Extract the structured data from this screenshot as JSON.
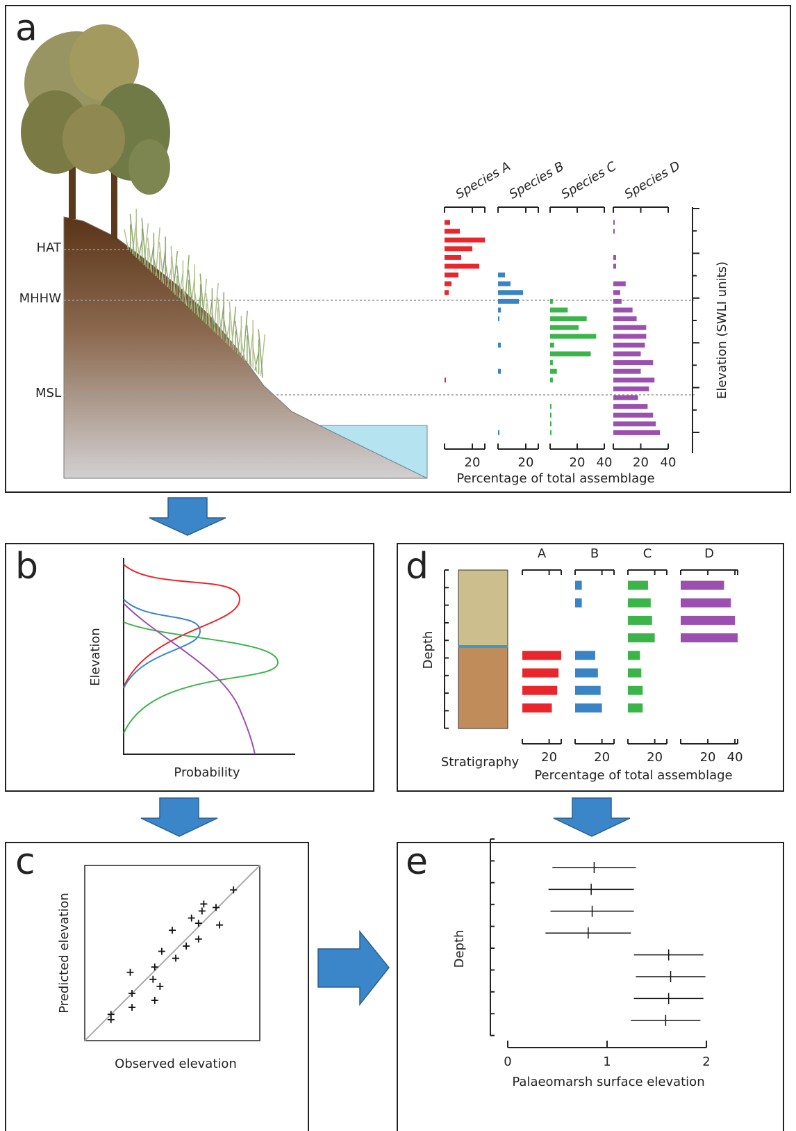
{
  "panel_a": {
    "label": "a",
    "tide_levels": [
      "HAT",
      "MHHW",
      "MSL"
    ],
    "species": [
      {
        "name": "Species A",
        "color": "#e8262b",
        "xlim": [
          0,
          29
        ],
        "xticks": [
          20
        ],
        "values": [
          4,
          11,
          29,
          20,
          12,
          25,
          10,
          5,
          3,
          null,
          null,
          null,
          null,
          null,
          null,
          null,
          null,
          null,
          1,
          null,
          null,
          null,
          null,
          null,
          null
        ]
      },
      {
        "name": "Species B",
        "color": "#3a84c6",
        "xlim": [
          0,
          29
        ],
        "xticks": [
          20
        ],
        "values": [
          null,
          null,
          null,
          null,
          null,
          null,
          5,
          9,
          18,
          15,
          2,
          1,
          null,
          null,
          2,
          null,
          null,
          2,
          null,
          null,
          null,
          null,
          null,
          null,
          1
        ]
      },
      {
        "name": "Species C",
        "color": "#3bb54a",
        "xlim": [
          0,
          40
        ],
        "xticks": [
          20,
          40
        ],
        "values": [
          null,
          null,
          null,
          null,
          null,
          null,
          null,
          null,
          null,
          2,
          13,
          27,
          21,
          34,
          3,
          30,
          2,
          5,
          2,
          null,
          null,
          1,
          1,
          1,
          1
        ]
      },
      {
        "name": "Species D",
        "color": "#9b4fae",
        "xlim": [
          0,
          40
        ],
        "xticks": [
          20,
          40
        ],
        "values": [
          1,
          1,
          null,
          null,
          2,
          2,
          null,
          9,
          5,
          6,
          14,
          17,
          24,
          24,
          23,
          20,
          29,
          20,
          30,
          26,
          18,
          25,
          29,
          31,
          34
        ]
      }
    ],
    "xlabel": "Percentage of total assemblage",
    "ylabel": "Elevation (SWLI units)"
  },
  "panel_b": {
    "label": "b",
    "ylabel": "Elevation",
    "xlabel": "Probability"
  },
  "panel_c": {
    "label": "c",
    "type": "scatter",
    "xlabel": "Observed elevation",
    "ylabel": "Predicted elevation",
    "xlim": [
      0,
      10
    ],
    "ylim": [
      0,
      10
    ],
    "x": [
      1.5,
      1.5,
      2.7,
      2.7,
      2.6,
      4.0,
      3.9,
      4.0,
      4.3,
      4.4,
      5.0,
      5.2,
      5.8,
      6.1,
      6.5,
      6.5,
      6.7,
      6.8,
      7.5,
      7.7,
      8.5
    ],
    "y": [
      1.5,
      1.2,
      2.7,
      1.9,
      3.9,
      4.2,
      3.5,
      2.3,
      3.1,
      5.1,
      6.3,
      4.7,
      5.4,
      7.0,
      6.7,
      5.8,
      7.4,
      7.8,
      7.6,
      6.6,
      8.6
    ]
  },
  "panel_d": {
    "label": "d",
    "column_label": "Stratigraphy",
    "ylabel": "Depth",
    "xlabel": "Percentage of total assemblage",
    "series": [
      {
        "name": "A",
        "color": "#e8262b",
        "xlim": [
          0,
          29
        ],
        "xticks": [
          20
        ],
        "values": [
          null,
          null,
          null,
          null,
          29,
          27,
          26,
          22
        ]
      },
      {
        "name": "B",
        "color": "#3a84c6",
        "xlim": [
          0,
          29
        ],
        "xticks": [
          20
        ],
        "values": [
          5,
          5,
          null,
          null,
          15,
          17,
          19,
          20
        ]
      },
      {
        "name": "C",
        "color": "#3bb54a",
        "xlim": [
          0,
          29
        ],
        "xticks": [
          20
        ],
        "values": [
          15,
          17,
          18,
          20,
          9,
          10,
          11,
          11
        ]
      },
      {
        "name": "D",
        "color": "#9b4fae",
        "xlim": [
          0,
          42
        ],
        "xticks": [
          20,
          40
        ],
        "values": [
          32,
          37,
          40,
          42,
          null,
          null,
          null,
          null
        ]
      }
    ]
  },
  "panel_e": {
    "label": "e",
    "type": "errorbar",
    "xlabel": "Palaeomarsh surface elevation",
    "ylabel": "Depth",
    "xlim": [
      0,
      2
    ],
    "xticks": [
      0,
      1,
      2
    ],
    "values": [
      0.87,
      0.84,
      0.85,
      0.81,
      1.62,
      1.64,
      1.62,
      1.59
    ],
    "errors": [
      0.42,
      0.43,
      0.42,
      0.43,
      0.35,
      0.35,
      0.35,
      0.35
    ]
  }
}
